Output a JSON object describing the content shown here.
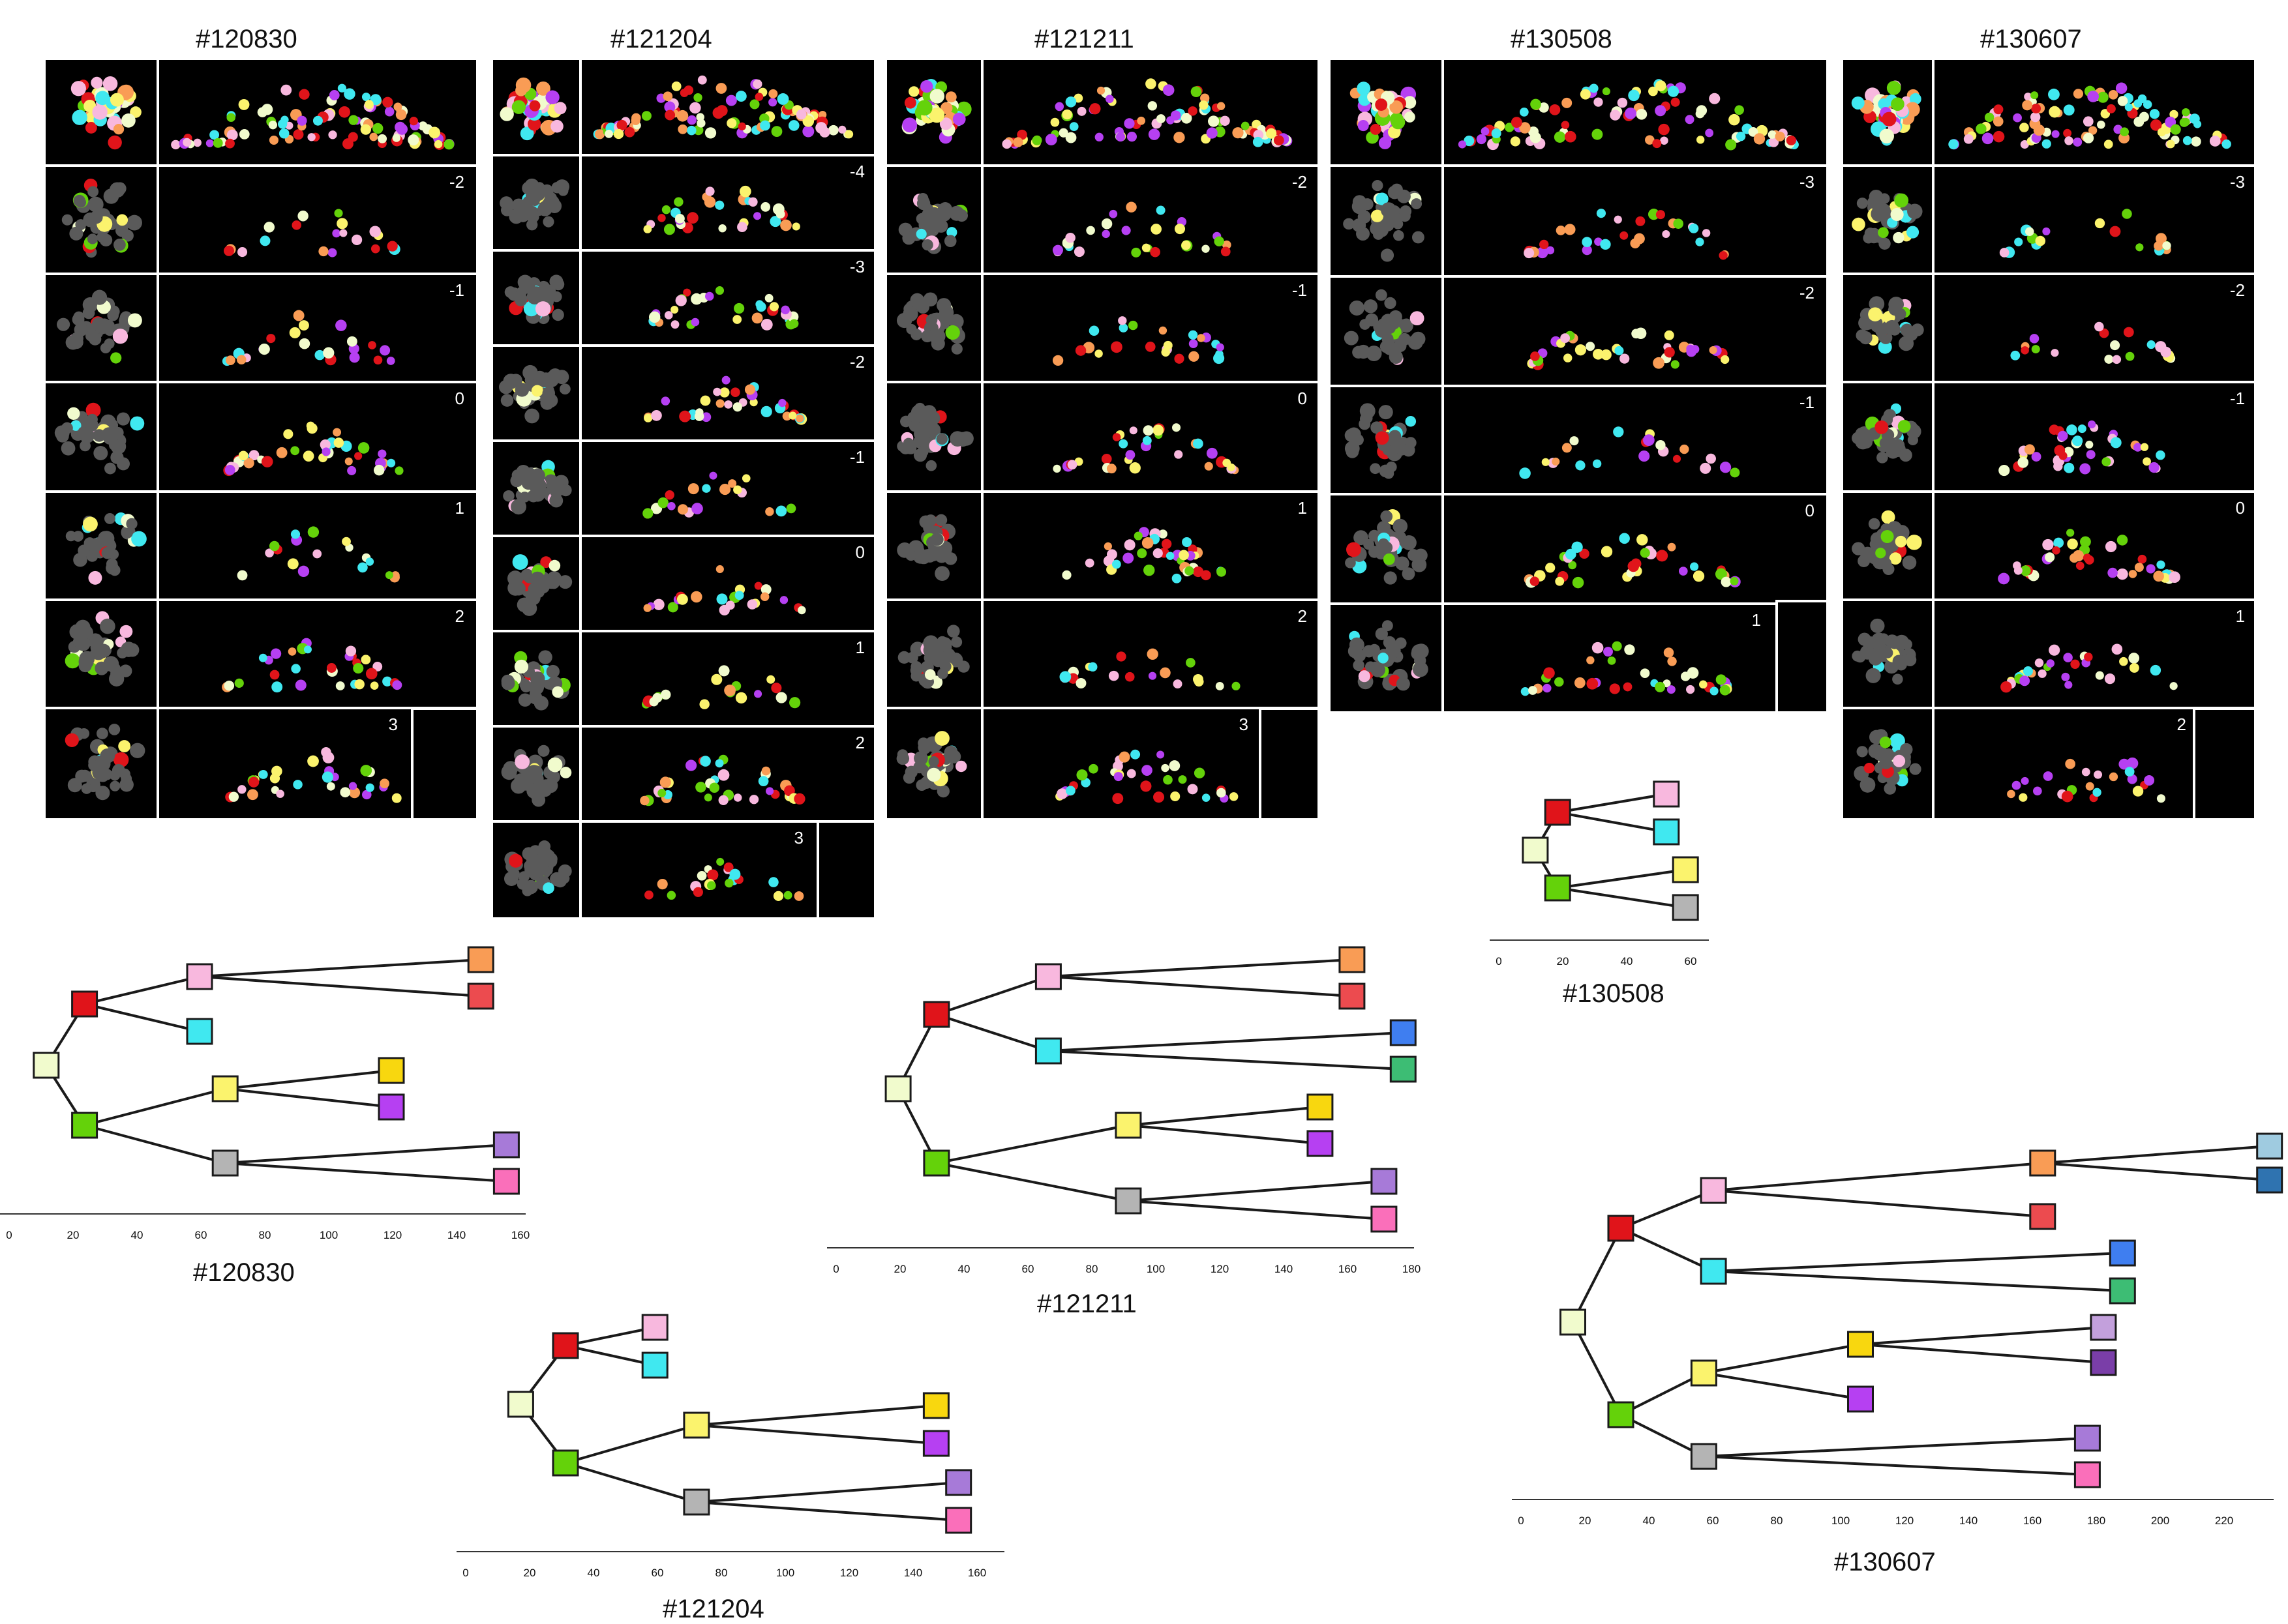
{
  "specimens": [
    {
      "id": "#120830",
      "slices": [
        "-2",
        "-1",
        "0",
        "1",
        "2",
        "3"
      ],
      "tree": {
        "axis_ticks": [
          "0",
          "20",
          "40",
          "60",
          "80",
          "100",
          "120",
          "140",
          "160"
        ],
        "nodes": [
          {
            "key": "root",
            "t": 12,
            "color": "#f1fbcd"
          },
          {
            "key": "red",
            "t": 24,
            "color": "#e0141a",
            "parent": "root"
          },
          {
            "key": "green",
            "t": 24,
            "color": "#64d20a",
            "parent": "root"
          },
          {
            "key": "pink",
            "t": 60,
            "color": "#f8b8de",
            "parent": "red"
          },
          {
            "key": "cyan",
            "t": 60,
            "color": "#40e8f0",
            "parent": "red"
          },
          {
            "key": "yellow",
            "t": 68,
            "color": "#fbf36d",
            "parent": "green"
          },
          {
            "key": "grey",
            "t": 68,
            "color": "#b4b4b4",
            "parent": "green"
          },
          {
            "key": "orange",
            "t": 148,
            "color": "#f99c55",
            "parent": "pink"
          },
          {
            "key": "salmon",
            "t": 148,
            "color": "#ec4b4f",
            "parent": "pink"
          },
          {
            "key": "gold",
            "t": 120,
            "color": "#f8d70f",
            "parent": "yellow"
          },
          {
            "key": "violet",
            "t": 120,
            "color": "#b640f2",
            "parent": "yellow"
          },
          {
            "key": "lavender",
            "t": 156,
            "color": "#a77ad8",
            "parent": "grey"
          },
          {
            "key": "hotpink",
            "t": 156,
            "color": "#fa6fba",
            "parent": "grey"
          }
        ]
      }
    },
    {
      "id": "#121204",
      "slices": [
        "-4",
        "-3",
        "-2",
        "-1",
        "0",
        "1",
        "2",
        "3"
      ],
      "tree": {
        "axis_ticks": [
          "0",
          "20",
          "40",
          "60",
          "80",
          "100",
          "120",
          "140",
          "160"
        ],
        "nodes": [
          {
            "key": "root",
            "t": 16,
            "color": "#f1fbcd"
          },
          {
            "key": "red",
            "t": 30,
            "color": "#e0141a",
            "parent": "root"
          },
          {
            "key": "green",
            "t": 30,
            "color": "#64d20a",
            "parent": "root"
          },
          {
            "key": "pink",
            "t": 58,
            "color": "#f8b8de",
            "parent": "red"
          },
          {
            "key": "cyan",
            "t": 58,
            "color": "#40e8f0",
            "parent": "red"
          },
          {
            "key": "yellow",
            "t": 71,
            "color": "#fbf36d",
            "parent": "green"
          },
          {
            "key": "grey",
            "t": 71,
            "color": "#b4b4b4",
            "parent": "green"
          },
          {
            "key": "gold",
            "t": 146,
            "color": "#f8d70f",
            "parent": "yellow"
          },
          {
            "key": "violet",
            "t": 146,
            "color": "#b640f2",
            "parent": "yellow"
          },
          {
            "key": "lavender",
            "t": 153,
            "color": "#a77ad8",
            "parent": "grey"
          },
          {
            "key": "hotpink",
            "t": 153,
            "color": "#fa6fba",
            "parent": "grey"
          }
        ]
      }
    },
    {
      "id": "#121211",
      "slices": [
        "-2",
        "-1",
        "0",
        "1",
        "2",
        "3"
      ],
      "tree": {
        "axis_ticks": [
          "0",
          "20",
          "40",
          "60",
          "80",
          "100",
          "120",
          "140",
          "160",
          "180"
        ],
        "nodes": [
          {
            "key": "root",
            "t": 19,
            "color": "#f1fbcd"
          },
          {
            "key": "red",
            "t": 31,
            "color": "#e0141a",
            "parent": "root"
          },
          {
            "key": "green",
            "t": 31,
            "color": "#64d20a",
            "parent": "root"
          },
          {
            "key": "pink",
            "t": 66,
            "color": "#f8b8de",
            "parent": "red"
          },
          {
            "key": "cyan",
            "t": 66,
            "color": "#40e8f0",
            "parent": "red"
          },
          {
            "key": "yellow",
            "t": 91,
            "color": "#fbf36d",
            "parent": "green"
          },
          {
            "key": "grey",
            "t": 91,
            "color": "#b4b4b4",
            "parent": "green"
          },
          {
            "key": "orange",
            "t": 161,
            "color": "#f99c55",
            "parent": "pink"
          },
          {
            "key": "salmon",
            "t": 161,
            "color": "#ec4b4f",
            "parent": "pink"
          },
          {
            "key": "blue",
            "t": 177,
            "color": "#3f7ef0",
            "parent": "cyan"
          },
          {
            "key": "teal",
            "t": 177,
            "color": "#3dbd74",
            "parent": "cyan"
          },
          {
            "key": "gold",
            "t": 151,
            "color": "#f8d70f",
            "parent": "yellow"
          },
          {
            "key": "violet",
            "t": 151,
            "color": "#b640f2",
            "parent": "yellow"
          },
          {
            "key": "lavender",
            "t": 171,
            "color": "#a77ad8",
            "parent": "grey"
          },
          {
            "key": "hotpink",
            "t": 171,
            "color": "#fa6fba",
            "parent": "grey"
          }
        ]
      }
    },
    {
      "id": "#130508",
      "slices": [
        "-3",
        "-2",
        "-1",
        "0",
        "1"
      ],
      "tree": {
        "axis_ticks": [
          "0",
          "20",
          "40",
          "60"
        ],
        "nodes": [
          {
            "key": "root",
            "t": 11,
            "color": "#f1fbcd"
          },
          {
            "key": "red",
            "t": 18,
            "color": "#e0141a",
            "parent": "root"
          },
          {
            "key": "green",
            "t": 18,
            "color": "#64d20a",
            "parent": "root"
          },
          {
            "key": "pink",
            "t": 52,
            "color": "#f8b8de",
            "parent": "red"
          },
          {
            "key": "cyan",
            "t": 52,
            "color": "#40e8f0",
            "parent": "red"
          },
          {
            "key": "yellow",
            "t": 58,
            "color": "#fbf36d",
            "parent": "green"
          },
          {
            "key": "grey",
            "t": 58,
            "color": "#b4b4b4",
            "parent": "green"
          }
        ]
      }
    },
    {
      "id": "#130607",
      "slices": [
        "-3",
        "-2",
        "-1",
        "0",
        "1",
        "2"
      ],
      "tree": {
        "axis_ticks": [
          "0",
          "20",
          "40",
          "60",
          "80",
          "100",
          "120",
          "140",
          "160",
          "180",
          "200",
          "220"
        ],
        "nodes": [
          {
            "key": "root",
            "t": 15,
            "color": "#f1fbcd"
          },
          {
            "key": "red",
            "t": 30,
            "color": "#e0141a",
            "parent": "root"
          },
          {
            "key": "green",
            "t": 30,
            "color": "#64d20a",
            "parent": "root"
          },
          {
            "key": "pink",
            "t": 59,
            "color": "#f8b8de",
            "parent": "red"
          },
          {
            "key": "cyan",
            "t": 59,
            "color": "#40e8f0",
            "parent": "red"
          },
          {
            "key": "yellow",
            "t": 56,
            "color": "#fbf36d",
            "parent": "green"
          },
          {
            "key": "grey",
            "t": 56,
            "color": "#b4b4b4",
            "parent": "green"
          },
          {
            "key": "orange",
            "t": 162,
            "color": "#f99c55",
            "parent": "pink"
          },
          {
            "key": "salmon",
            "t": 162,
            "color": "#ec4b4f",
            "parent": "pink"
          },
          {
            "key": "lightblue",
            "t": 233,
            "color": "#9fcbe0",
            "parent": "orange"
          },
          {
            "key": "steelblue",
            "t": 233,
            "color": "#2f73b0",
            "parent": "orange"
          },
          {
            "key": "blue",
            "t": 187,
            "color": "#3f7ef0",
            "parent": "cyan"
          },
          {
            "key": "teal",
            "t": 187,
            "color": "#3dbd74",
            "parent": "cyan"
          },
          {
            "key": "gold",
            "t": 105,
            "color": "#f8d70f",
            "parent": "yellow"
          },
          {
            "key": "violet",
            "t": 105,
            "color": "#b640f2",
            "parent": "yellow"
          },
          {
            "key": "mauve",
            "t": 181,
            "color": "#c3a0dc",
            "parent": "gold"
          },
          {
            "key": "purple",
            "t": 181,
            "color": "#7a3ea8",
            "parent": "gold"
          },
          {
            "key": "lavender",
            "t": 176,
            "color": "#a77ad8",
            "parent": "grey"
          },
          {
            "key": "hotpink",
            "t": 176,
            "color": "#fa6fba",
            "parent": "grey"
          }
        ]
      }
    }
  ],
  "palette": {
    "background_panel": "#000000",
    "cell_grey": "#5a5a5a",
    "divider": "#ffffff",
    "tree_line": "#1a1a1a"
  }
}
